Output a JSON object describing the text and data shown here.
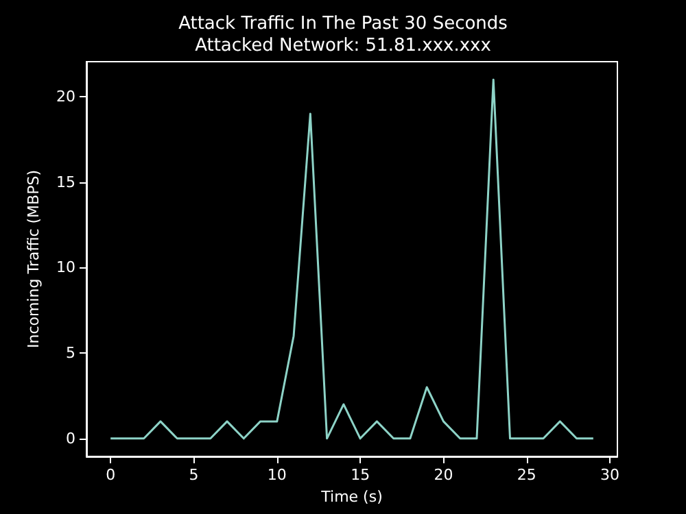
{
  "chart_data": {
    "type": "line",
    "title": "Attack Traffic In The Past 30 Seconds",
    "subtitle": "Attacked Network: 51.81.xxx.xxx",
    "xlabel": "Time (s)",
    "ylabel": "Incoming Traffic (MBPS)",
    "x": [
      0,
      1,
      2,
      3,
      4,
      5,
      6,
      7,
      8,
      9,
      10,
      11,
      12,
      13,
      14,
      15,
      16,
      17,
      18,
      19,
      20,
      21,
      22,
      23,
      24,
      25,
      26,
      27,
      28,
      29
    ],
    "series": [
      {
        "color": "#8dd3c7",
        "values": [
          0,
          0,
          0,
          1,
          0,
          0,
          0,
          1,
          0,
          1,
          1,
          6,
          19,
          0,
          2,
          0,
          1,
          0,
          0,
          3,
          1,
          0,
          0,
          21,
          0,
          0,
          0,
          1,
          0,
          0
        ]
      }
    ],
    "xlim": [
      -1.45,
      30.45
    ],
    "xticks": [
      0,
      5,
      10,
      15,
      20,
      25,
      30
    ],
    "ylim": [
      -1.05,
      22.05
    ],
    "yticks": [
      0,
      5,
      10,
      15,
      20
    ],
    "grid": false,
    "marker": "none",
    "line_style": "solid"
  }
}
